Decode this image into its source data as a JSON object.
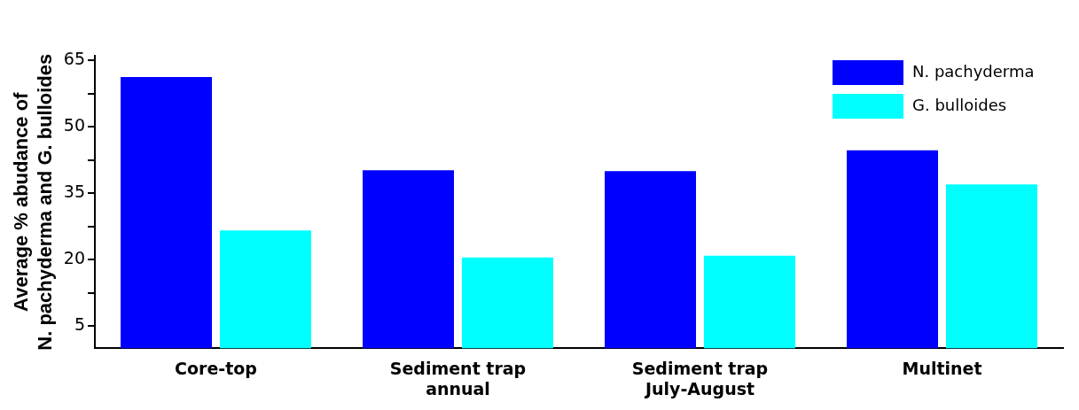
{
  "chart_data": {
    "type": "bar",
    "ylabel": "Average % abudance of\nN. pachyderma and G. bulloides",
    "categories": [
      "Core-top",
      "Sediment trap\nannual",
      "Sediment trap\nJuly-August",
      "Multinet"
    ],
    "series": [
      {
        "name": "N. pachyderma",
        "color": "#0000ff",
        "values": [
          61.2,
          40.2,
          40.0,
          44.7
        ]
      },
      {
        "name": "G. bulloides",
        "color": "#00ffff",
        "values": [
          26.6,
          20.5,
          20.9,
          37.0
        ]
      }
    ],
    "ylim": [
      0,
      66
    ],
    "yticks": [
      5,
      {
        "value": 12.5,
        "label": null
      },
      20,
      {
        "value": 27.5,
        "label": null
      },
      35,
      {
        "value": 42.5,
        "label": null
      },
      50,
      {
        "value": 57.5,
        "label": null
      },
      65
    ],
    "grid": false,
    "legend": "top right"
  }
}
